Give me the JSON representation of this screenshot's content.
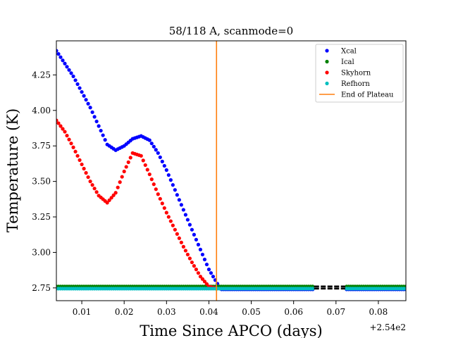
{
  "chart_data": {
    "type": "scatter",
    "title": "58/118 A, scanmode=0",
    "xlabel": "Time Since APCO (days)",
    "ylabel": "Temperature (K)",
    "x_offset_label": "+2.54e2",
    "xlim": [
      254.004,
      254.0865
    ],
    "ylim": [
      2.66,
      4.49
    ],
    "x_ticks": [
      254.01,
      254.02,
      254.03,
      254.04,
      254.05,
      254.06,
      254.07,
      254.08
    ],
    "x_tick_labels": [
      "0.01",
      "0.02",
      "0.03",
      "0.04",
      "0.05",
      "0.06",
      "0.07",
      "0.08"
    ],
    "y_ticks": [
      2.75,
      3.0,
      3.25,
      3.5,
      3.75,
      4.0,
      4.25
    ],
    "y_tick_labels": [
      "2.75",
      "3.00",
      "3.25",
      "3.50",
      "3.75",
      "4.00",
      "4.25"
    ],
    "grid": false,
    "legend_position": "top-right",
    "series": [
      {
        "name": "Xcal",
        "color": "#0000ff",
        "points": [
          [
            254.004,
            4.42
          ],
          [
            254.006,
            4.33
          ],
          [
            254.008,
            4.24
          ],
          [
            254.01,
            4.13
          ],
          [
            254.012,
            4.02
          ],
          [
            254.014,
            3.89
          ],
          [
            254.016,
            3.76
          ],
          [
            254.018,
            3.72
          ],
          [
            254.02,
            3.75
          ],
          [
            254.022,
            3.8
          ],
          [
            254.024,
            3.82
          ],
          [
            254.026,
            3.79
          ],
          [
            254.028,
            3.7
          ],
          [
            254.03,
            3.58
          ],
          [
            254.032,
            3.44
          ],
          [
            254.034,
            3.3
          ],
          [
            254.036,
            3.16
          ],
          [
            254.038,
            3.02
          ],
          [
            254.04,
            2.88
          ],
          [
            254.042,
            2.78
          ],
          [
            254.043,
            2.74
          ],
          [
            254.0645,
            2.74
          ],
          [
            254.0725,
            2.74
          ],
          [
            254.0865,
            2.74
          ]
        ],
        "segments": [
          [
            254.004,
            254.0645
          ],
          [
            254.0725,
            254.0865
          ]
        ]
      },
      {
        "name": "Ical",
        "color": "#008000",
        "points": [
          [
            254.004,
            2.76
          ],
          [
            254.0645,
            2.76
          ],
          [
            254.0725,
            2.76
          ],
          [
            254.0865,
            2.76
          ]
        ],
        "segments": [
          [
            254.004,
            254.0645
          ],
          [
            254.0725,
            254.0865
          ]
        ]
      },
      {
        "name": "Skyhorn",
        "color": "#ff0000",
        "points": [
          [
            254.004,
            3.93
          ],
          [
            254.006,
            3.85
          ],
          [
            254.008,
            3.74
          ],
          [
            254.01,
            3.62
          ],
          [
            254.012,
            3.5
          ],
          [
            254.014,
            3.4
          ],
          [
            254.016,
            3.35
          ],
          [
            254.018,
            3.42
          ],
          [
            254.02,
            3.57
          ],
          [
            254.022,
            3.7
          ],
          [
            254.024,
            3.68
          ],
          [
            254.026,
            3.55
          ],
          [
            254.028,
            3.41
          ],
          [
            254.03,
            3.28
          ],
          [
            254.032,
            3.16
          ],
          [
            254.034,
            3.04
          ],
          [
            254.036,
            2.93
          ],
          [
            254.038,
            2.83
          ],
          [
            254.04,
            2.76
          ],
          [
            254.0415,
            2.75
          ]
        ],
        "segments": [
          [
            254.004,
            254.0415
          ]
        ]
      },
      {
        "name": "Refhorn",
        "color": "#00bfbf",
        "points": [
          [
            254.004,
            2.745
          ],
          [
            254.0645,
            2.745
          ],
          [
            254.0725,
            2.745
          ],
          [
            254.0865,
            2.745
          ]
        ],
        "segments": [
          [
            254.004,
            254.0645
          ],
          [
            254.0725,
            254.0865
          ]
        ]
      }
    ],
    "gap_marks": {
      "color": "#000000",
      "x": [
        254.0645,
        254.0725
      ],
      "y": [
        2.76,
        2.745
      ]
    },
    "vlines": [
      {
        "name": "End of Plateau",
        "x": 254.0418,
        "color": "#ff7f0e"
      }
    ]
  }
}
